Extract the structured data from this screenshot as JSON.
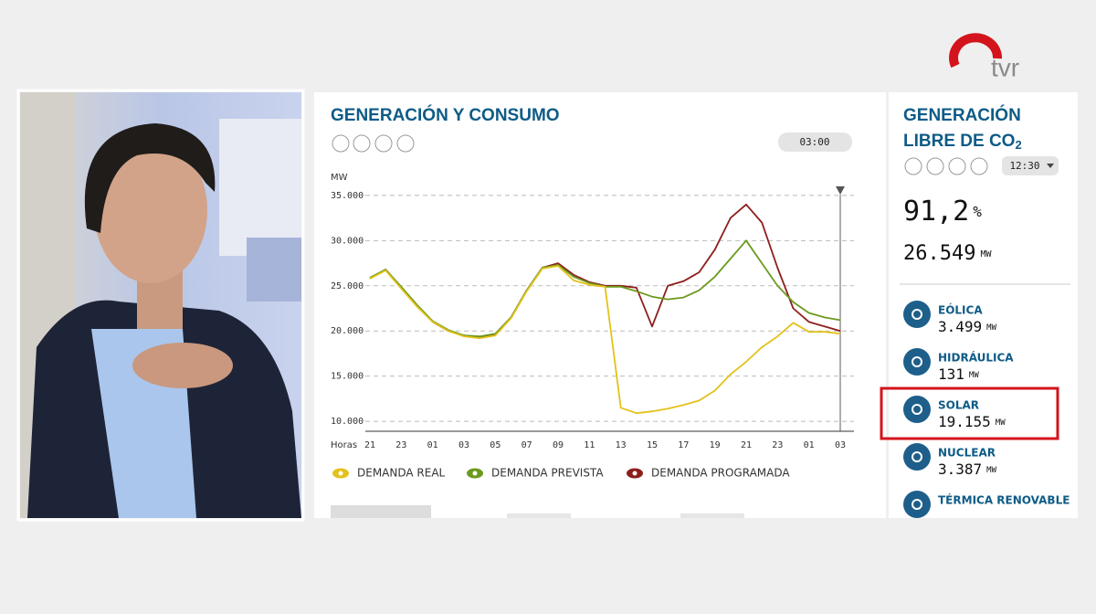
{
  "header": {
    "logo": "tvr"
  },
  "chart_data": {
    "type": "line",
    "title": "GENERACIÓN Y CONSUMO",
    "time": "03:00",
    "y_label": "MW",
    "x_label": "Horas",
    "categories": [
      "21",
      null,
      "23",
      null,
      "01",
      null,
      "03",
      null,
      "05",
      null,
      "07",
      null,
      "09",
      null,
      "11",
      null,
      "13",
      null,
      "15",
      null,
      "17",
      null,
      "19",
      null,
      "21",
      null,
      "23",
      null,
      "01",
      null,
      "03"
    ],
    "series": [
      {
        "name": "DEMANDA REAL",
        "color": "#e3c21a",
        "values": [
          25800,
          26700,
          24700,
          22700,
          21000,
          20000,
          19400,
          19200,
          19500,
          21400,
          24400,
          26900,
          27200,
          25600,
          25100,
          24900,
          11500,
          10900,
          11100,
          11400,
          11800,
          12300,
          13400,
          15200,
          16600,
          18200,
          19400,
          20900,
          19900,
          19900,
          19700
        ]
      },
      {
        "name": "DEMANDA PREVISTA",
        "color": "#6c9a1e",
        "values": [
          25900,
          26800,
          24900,
          22900,
          21100,
          20100,
          19500,
          19400,
          19700,
          21500,
          24500,
          27000,
          27300,
          26000,
          25300,
          24900,
          24900,
          24400,
          23800,
          23500,
          23700,
          24500,
          26000,
          28000,
          30000,
          27500,
          25000,
          23200,
          22000,
          21500,
          21200
        ]
      },
      {
        "name": "DEMANDA PROGRAMADA",
        "color": "#8c1f1c",
        "values": [
          25800,
          26800,
          24800,
          22800,
          21000,
          20000,
          19500,
          19300,
          19600,
          21500,
          24500,
          27000,
          27500,
          26200,
          25400,
          25000,
          25000,
          24800,
          20500,
          25000,
          25500,
          26500,
          29000,
          32500,
          34000,
          32000,
          27000,
          22500,
          21000,
          20500,
          20000
        ]
      }
    ],
    "ylim": [
      8900,
      35900
    ],
    "yticks": [
      {
        "value": 10000,
        "label": "10.000"
      },
      {
        "value": 15000,
        "label": "15.000"
      },
      {
        "value": 20000,
        "label": "20.000"
      },
      {
        "value": 25000,
        "label": "25.000"
      },
      {
        "value": 30000,
        "label": "30.000"
      },
      {
        "value": 35000,
        "label": "35.000"
      }
    ],
    "grid": true
  },
  "side_panel": {
    "title_line1": "GENERACIÓN",
    "title_line2": "LIBRE DE CO",
    "title_sub": "2",
    "time": "12:30",
    "percent": "91,2",
    "percent_unit": "%",
    "total": "26.549",
    "total_unit": "MW",
    "items": [
      {
        "name": "EÓLICA",
        "value": "3.499",
        "unit": "MW"
      },
      {
        "name": "HIDRÁULICA",
        "value": "131",
        "unit": "MW"
      },
      {
        "name": "SOLAR",
        "value": "19.155",
        "unit": "MW"
      },
      {
        "name": "NUCLEAR",
        "value": "3.387",
        "unit": "MW"
      },
      {
        "name": "TÉRMICA RENOVABLE"
      }
    ]
  }
}
